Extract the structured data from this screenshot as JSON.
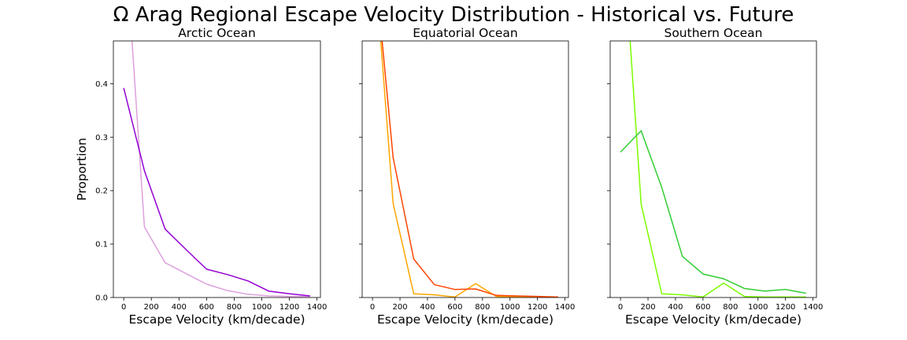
{
  "figure": {
    "suptitle": "Ω Arag Regional Escape Velocity Distribution - Historical vs. Future"
  },
  "chart_data": [
    {
      "type": "line",
      "title": "Arctic Ocean",
      "xlabel": "Escape Velocity (km/decade)",
      "ylabel": "Proportion",
      "xlim": [
        -75,
        1425
      ],
      "ylim": [
        0,
        0.48
      ],
      "xticks": [
        0,
        200,
        400,
        600,
        800,
        1000,
        1200,
        1400
      ],
      "yticks": [
        0.0,
        0.1,
        0.2,
        0.3,
        0.4
      ],
      "ytick_labels_shown": true,
      "grid": false,
      "series": [
        {
          "color": "#dda0dd",
          "x": [
            60,
            150,
            300,
            450,
            600,
            750,
            900,
            1050,
            1200,
            1350
          ],
          "y": [
            0.48,
            0.132,
            0.065,
            0.045,
            0.025,
            0.013,
            0.006,
            0.003,
            0.002,
            0.002
          ]
        },
        {
          "color": "#9400d3",
          "x": [
            0,
            150,
            300,
            450,
            600,
            750,
            900,
            1050,
            1200,
            1350
          ],
          "y": [
            0.392,
            0.237,
            0.128,
            0.09,
            0.053,
            0.043,
            0.031,
            0.012,
            0.007,
            0.003
          ]
        }
      ]
    },
    {
      "type": "line",
      "title": "Equatorial Ocean",
      "xlabel": "Escape Velocity (km/decade)",
      "ylabel": "",
      "xlim": [
        -75,
        1425
      ],
      "ylim": [
        0,
        0.48
      ],
      "xticks": [
        0,
        200,
        400,
        600,
        800,
        1000,
        1200,
        1400
      ],
      "yticks": [
        0.0,
        0.1,
        0.2,
        0.3,
        0.4
      ],
      "ytick_labels_shown": false,
      "grid": false,
      "series": [
        {
          "color": "#ffa500",
          "x": [
            60,
            150,
            300,
            450,
            600,
            750,
            900,
            1050,
            1200,
            1350
          ],
          "y": [
            0.48,
            0.176,
            0.007,
            0.005,
            0.001,
            0.026,
            0.002,
            0.001,
            0.001,
            0.001
          ]
        },
        {
          "color": "#ff4500",
          "x": [
            70,
            150,
            300,
            450,
            600,
            750,
            900,
            1050,
            1200,
            1350
          ],
          "y": [
            0.48,
            0.262,
            0.072,
            0.024,
            0.015,
            0.016,
            0.004,
            0.003,
            0.002,
            0.001
          ]
        }
      ]
    },
    {
      "type": "line",
      "title": "Southern Ocean",
      "xlabel": "Escape Velocity (km/decade)",
      "ylabel": "",
      "xlim": [
        -75,
        1425
      ],
      "ylim": [
        0,
        0.48
      ],
      "xticks": [
        0,
        200,
        400,
        600,
        800,
        1000,
        1200,
        1400
      ],
      "yticks": [
        0.0,
        0.1,
        0.2,
        0.3,
        0.4
      ],
      "ytick_labels_shown": false,
      "grid": false,
      "series": [
        {
          "color": "#7cfc00",
          "x": [
            70,
            150,
            300,
            450,
            600,
            750,
            900,
            1050,
            1200,
            1350
          ],
          "y": [
            0.48,
            0.175,
            0.007,
            0.005,
            0.001,
            0.027,
            0.002,
            0.001,
            0.001,
            0.001
          ]
        },
        {
          "color": "#32cd32",
          "x": [
            0,
            150,
            300,
            450,
            600,
            750,
            900,
            1050,
            1200,
            1350
          ],
          "y": [
            0.272,
            0.312,
            0.206,
            0.077,
            0.044,
            0.035,
            0.017,
            0.012,
            0.015,
            0.008
          ]
        }
      ]
    }
  ]
}
